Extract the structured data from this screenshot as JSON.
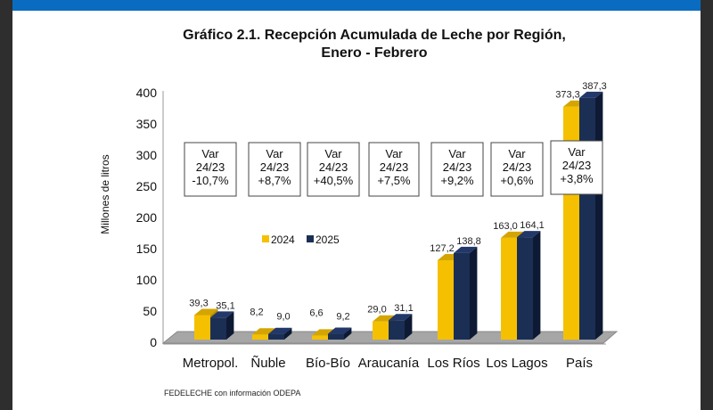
{
  "chart_data": {
    "type": "bar",
    "title": "Gráfico 2.1. Recepción Acumulada de Leche por Región,",
    "subtitle": "Enero - Febrero",
    "ylabel": "Millones de litros",
    "xlabel": "",
    "ylim": [
      0,
      400
    ],
    "yticks": [
      "0",
      "50",
      "100",
      "150",
      "200",
      "250",
      "300",
      "350",
      "400"
    ],
    "categories": [
      "Metropol.",
      "Ñuble",
      "Bío-Bío",
      "Araucanía",
      "Los Ríos",
      "Los Lagos",
      "País"
    ],
    "series": [
      {
        "name": "2024",
        "color": "#f5c000",
        "values": [
          39.3,
          8.2,
          6.6,
          29.0,
          127.2,
          163.0,
          373.3
        ],
        "labels": [
          "39,3",
          "8,2",
          "6,6",
          "29,0",
          "127,2",
          "163,0",
          "373,3"
        ]
      },
      {
        "name": "2025",
        "color": "#1b2f55",
        "values": [
          35.1,
          9.0,
          9.2,
          31.1,
          138.8,
          164.1,
          387.3
        ],
        "labels": [
          "35,1",
          "9,0",
          "9,2",
          "31,1",
          "138,8",
          "164,1",
          "387,3"
        ]
      }
    ],
    "annotations": [
      {
        "line1": "Var",
        "line2": "24/23",
        "line3": "-10,7%"
      },
      {
        "line1": "Var",
        "line2": "24/23",
        "line3": "+8,7%"
      },
      {
        "line1": "Var",
        "line2": "24/23",
        "line3": "+40,5%"
      },
      {
        "line1": "Var",
        "line2": "24/23",
        "line3": "+7,5%"
      },
      {
        "line1": "Var",
        "line2": "24/23",
        "line3": "+9,2%"
      },
      {
        "line1": "Var",
        "line2": "24/23",
        "line3": "+0,6%"
      },
      {
        "line1": "Var",
        "line2": "24/23",
        "line3": "+3,8%"
      }
    ],
    "legend_position": "center-left",
    "grid": false,
    "source": "FEDELECHE con información ODEPA"
  }
}
